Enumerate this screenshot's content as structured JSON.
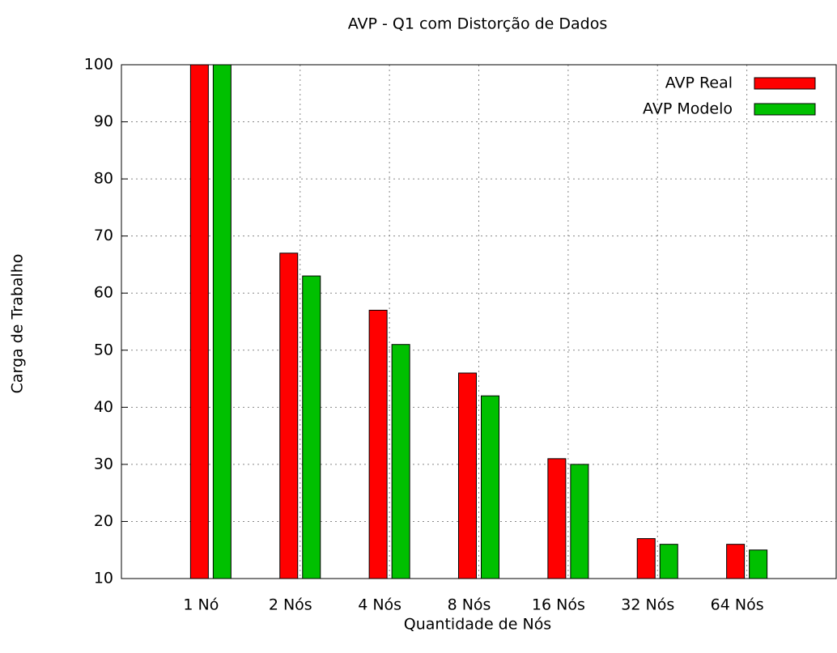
{
  "chart_data": {
    "type": "bar",
    "title": "AVP - Q1 com Distorção de Dados",
    "x_label": "Quantidade de Nós",
    "y_label": "Carga de Trabalho",
    "categories": [
      "1 Nó",
      "2 Nós",
      "4 Nós",
      "8 Nós",
      "16 Nós",
      "32 Nós",
      "64 Nós"
    ],
    "series": [
      {
        "name": "AVP Real",
        "color": "#ff0000",
        "values": [
          100,
          67,
          57,
          46,
          31,
          17,
          16
        ]
      },
      {
        "name": "AVP Modelo",
        "color": "#00c000",
        "values": [
          100,
          63,
          51,
          42,
          30,
          16,
          15
        ]
      }
    ],
    "ylim": [
      10,
      100
    ],
    "yticks": [
      10,
      20,
      30,
      40,
      50,
      60,
      70,
      80,
      90,
      100
    ],
    "grid": true,
    "legend": "top-right"
  }
}
